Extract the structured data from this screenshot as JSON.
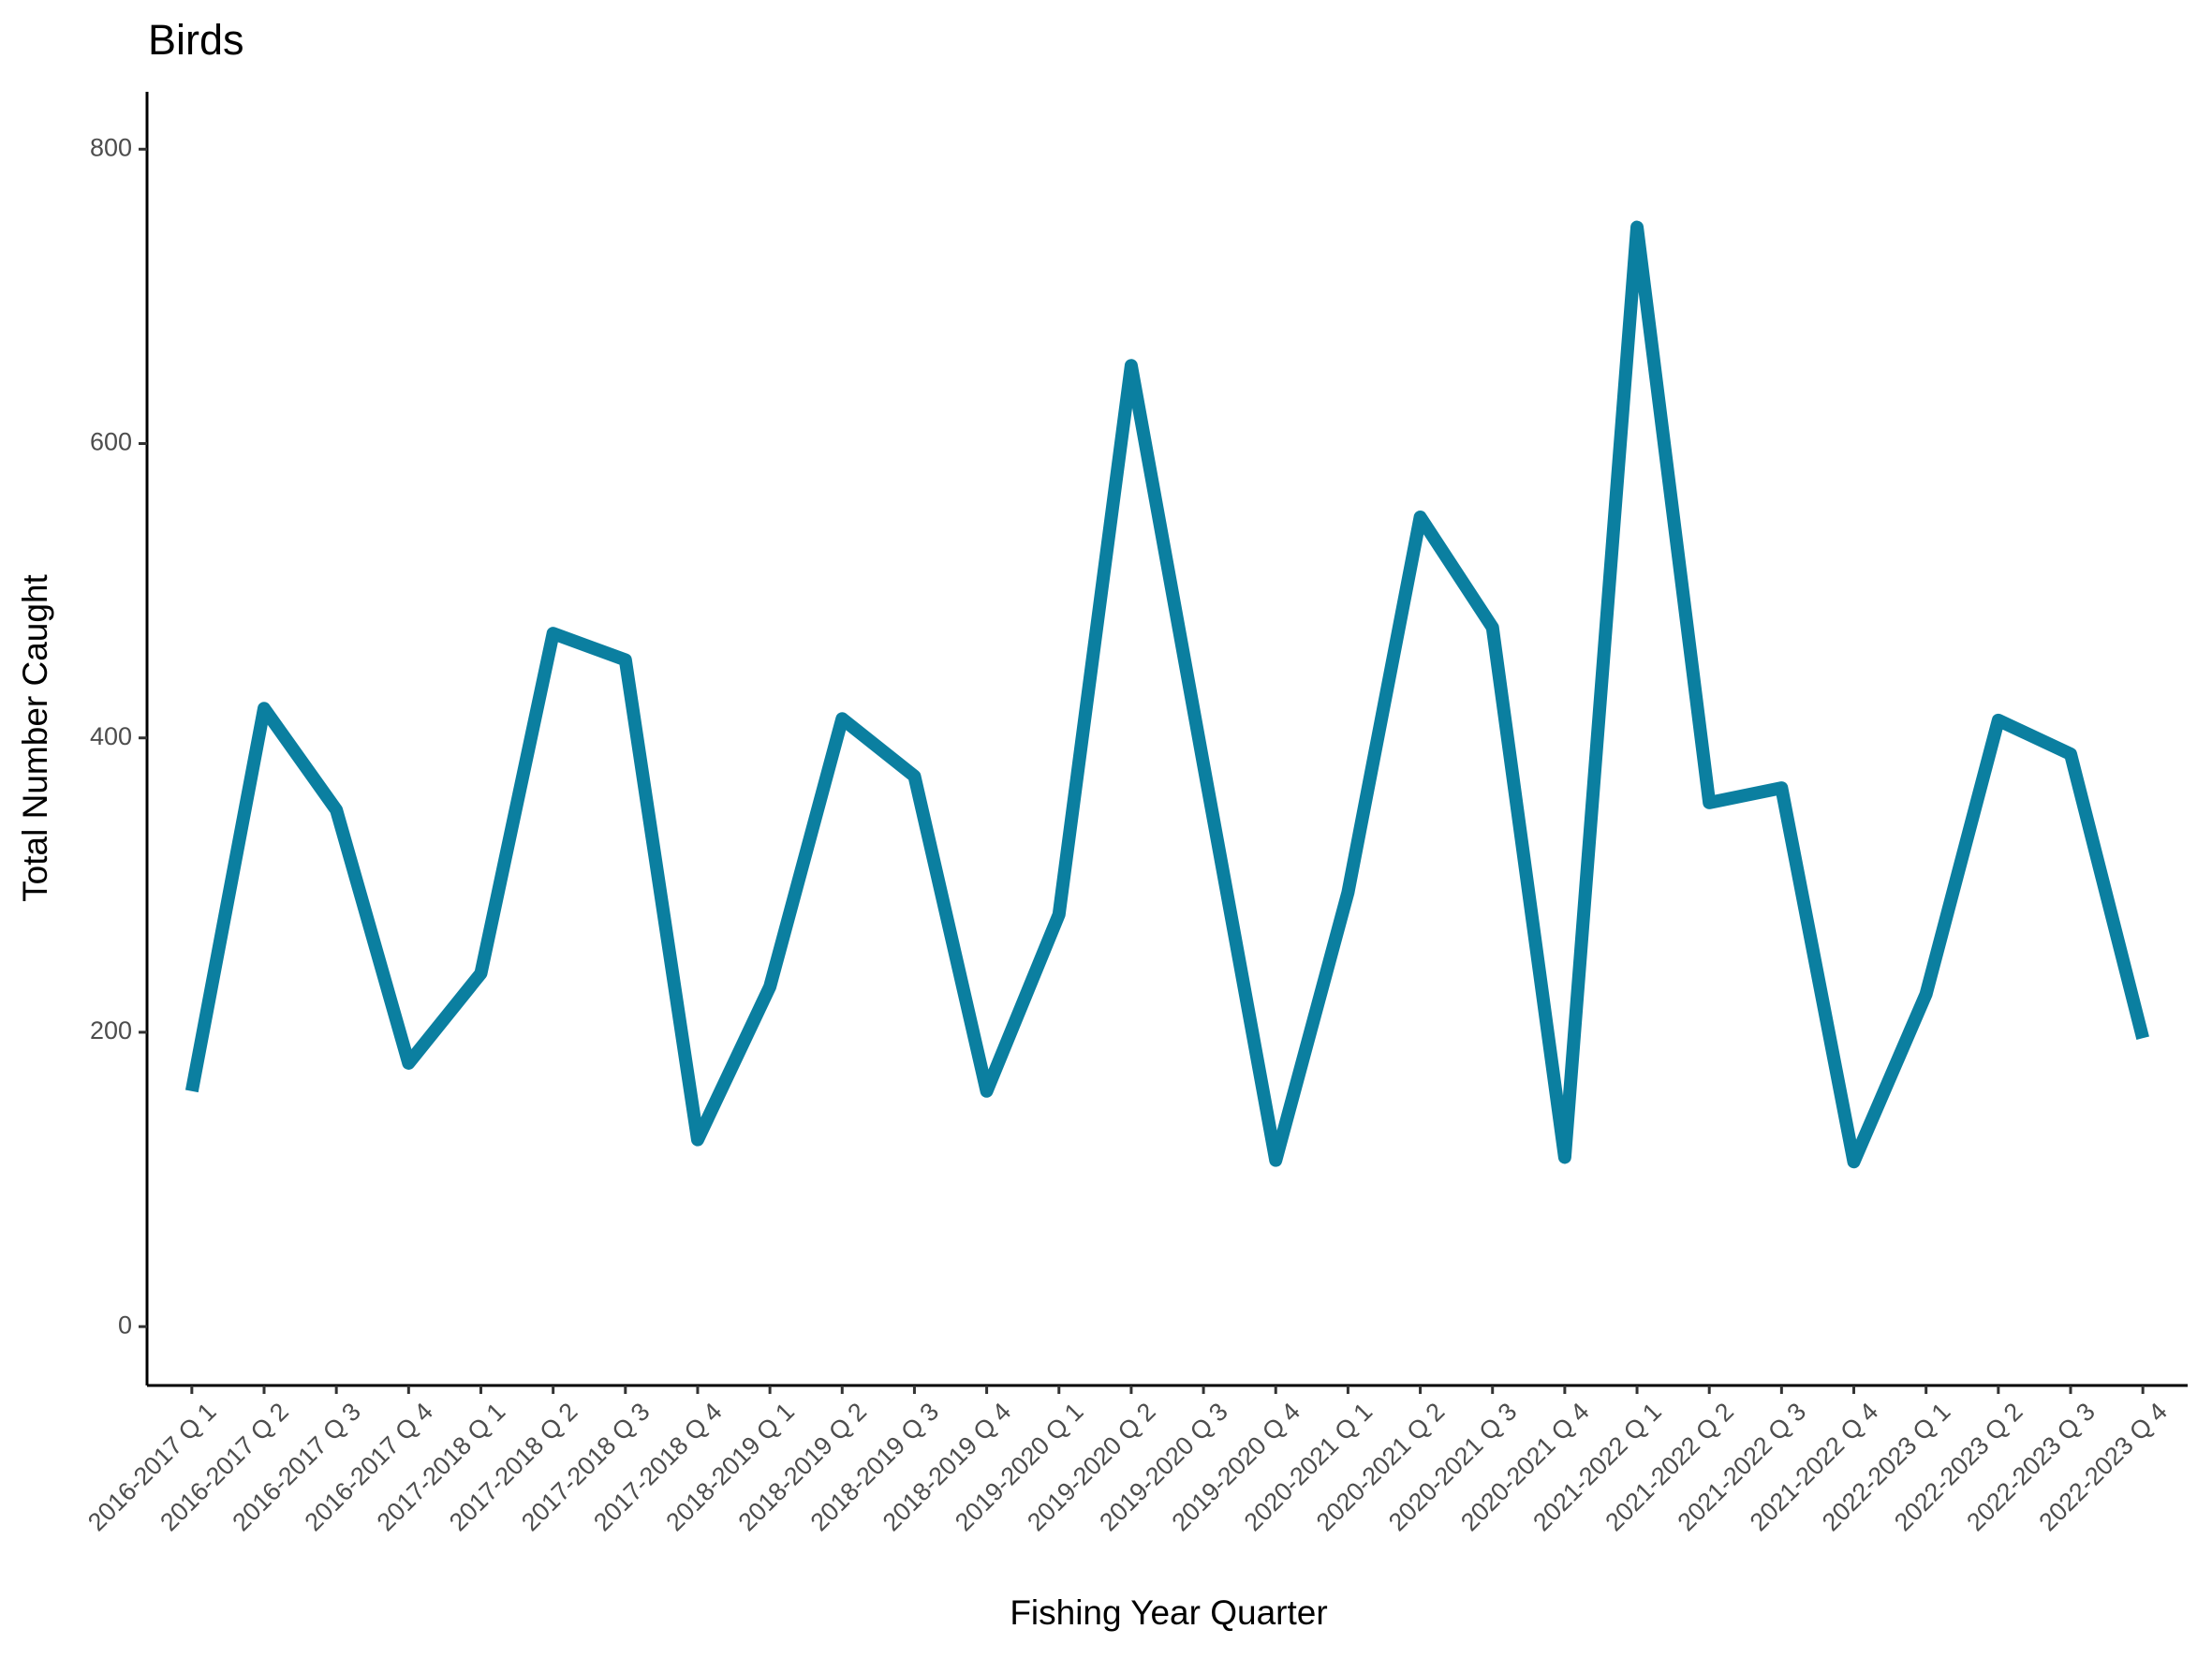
{
  "chart_data": {
    "type": "line",
    "title": "Birds",
    "x_label": "Fishing Year Quarter",
    "y_label": "Total Number Caught",
    "categories": [
      "2016-2017 Q 1",
      "2016-2017 Q 2",
      "2016-2017 Q 3",
      "2016-2017 Q 4",
      "2017-2018 Q 1",
      "2017-2018 Q 2",
      "2017-2018 Q 3",
      "2017-2018 Q 4",
      "2018-2019 Q 1",
      "2018-2019 Q 2",
      "2018-2019 Q 3",
      "2018-2019 Q 4",
      "2019-2020 Q 1",
      "2019-2020 Q 2",
      "2019-2020 Q 3",
      "2019-2020 Q 4",
      "2020-2021 Q 1",
      "2020-2021 Q 2",
      "2020-2021 Q 3",
      "2020-2021 Q 4",
      "2021-2022 Q 1",
      "2021-2022 Q 2",
      "2021-2022 Q 3",
      "2021-2022 Q 4",
      "2022-2023 Q 1",
      "2022-2023 Q 2",
      "2022-2023 Q 3",
      "2022-2023 Q 4"
    ],
    "values": [
      160,
      420,
      351,
      179,
      240,
      471,
      453,
      127,
      231,
      413,
      374,
      160,
      280,
      653,
      382,
      113,
      295,
      550,
      475,
      115,
      747,
      356,
      366,
      112,
      226,
      412,
      389,
      196
    ],
    "color": "#0b7fa0",
    "ylim": [
      -40,
      839
    ],
    "yticks": [
      0,
      200,
      400,
      600,
      800
    ],
    "grid": false
  }
}
